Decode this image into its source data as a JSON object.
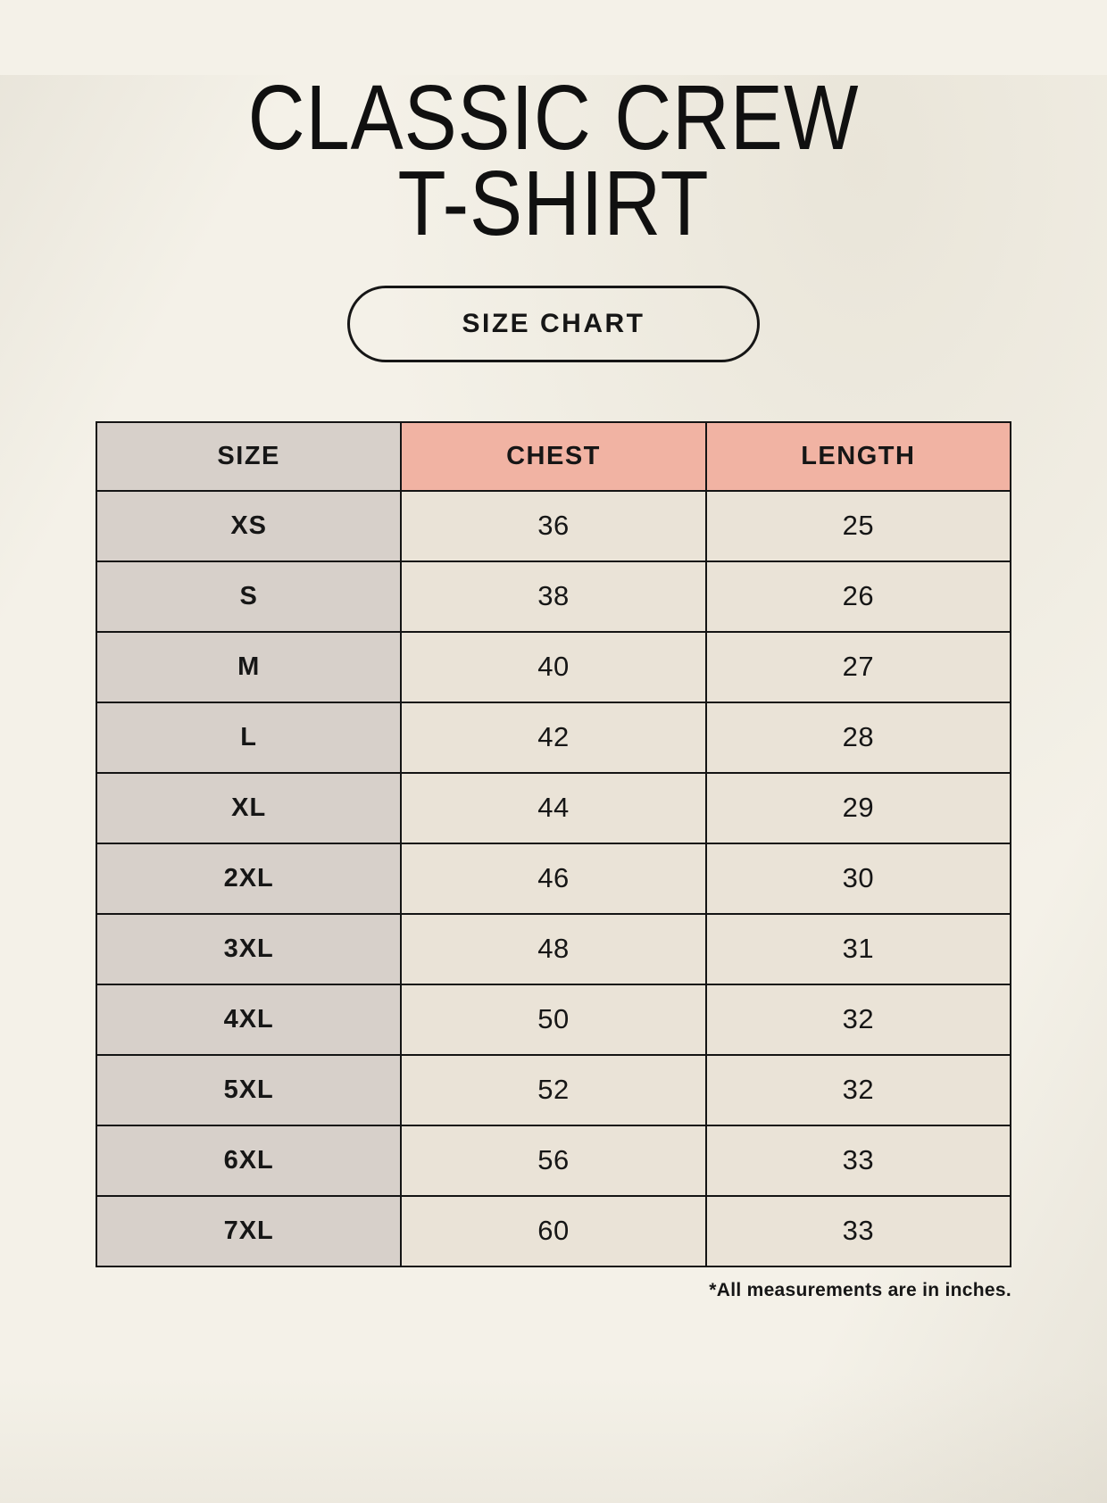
{
  "page": {
    "title_line1": "CLASSIC CREW",
    "title_line2": "T-SHIRT",
    "size_chart_badge": "SIZE CHART",
    "footnote": "*All measurements are in inches."
  },
  "colors": {
    "background": "#f4f1e8",
    "header_accent": "#f1b3a3",
    "size_column_bg": "#d7d0ca",
    "cell_bg": "#eae3d7",
    "border": "#141414",
    "text": "#161616"
  },
  "chart_data": {
    "type": "table",
    "title": "CLASSIC CREW T-SHIRT",
    "subtitle": "SIZE CHART",
    "units_note": "*All measurements are in inches.",
    "columns": [
      "SIZE",
      "CHEST",
      "LENGTH"
    ],
    "rows": [
      {
        "size": "XS",
        "chest": 36,
        "length": 25
      },
      {
        "size": "S",
        "chest": 38,
        "length": 26
      },
      {
        "size": "M",
        "chest": 40,
        "length": 27
      },
      {
        "size": "L",
        "chest": 42,
        "length": 28
      },
      {
        "size": "XL",
        "chest": 44,
        "length": 29
      },
      {
        "size": "2XL",
        "chest": 46,
        "length": 30
      },
      {
        "size": "3XL",
        "chest": 48,
        "length": 31
      },
      {
        "size": "4XL",
        "chest": 50,
        "length": 32
      },
      {
        "size": "5XL",
        "chest": 52,
        "length": 32
      },
      {
        "size": "6XL",
        "chest": 56,
        "length": 33
      },
      {
        "size": "7XL",
        "chest": 60,
        "length": 33
      }
    ]
  }
}
